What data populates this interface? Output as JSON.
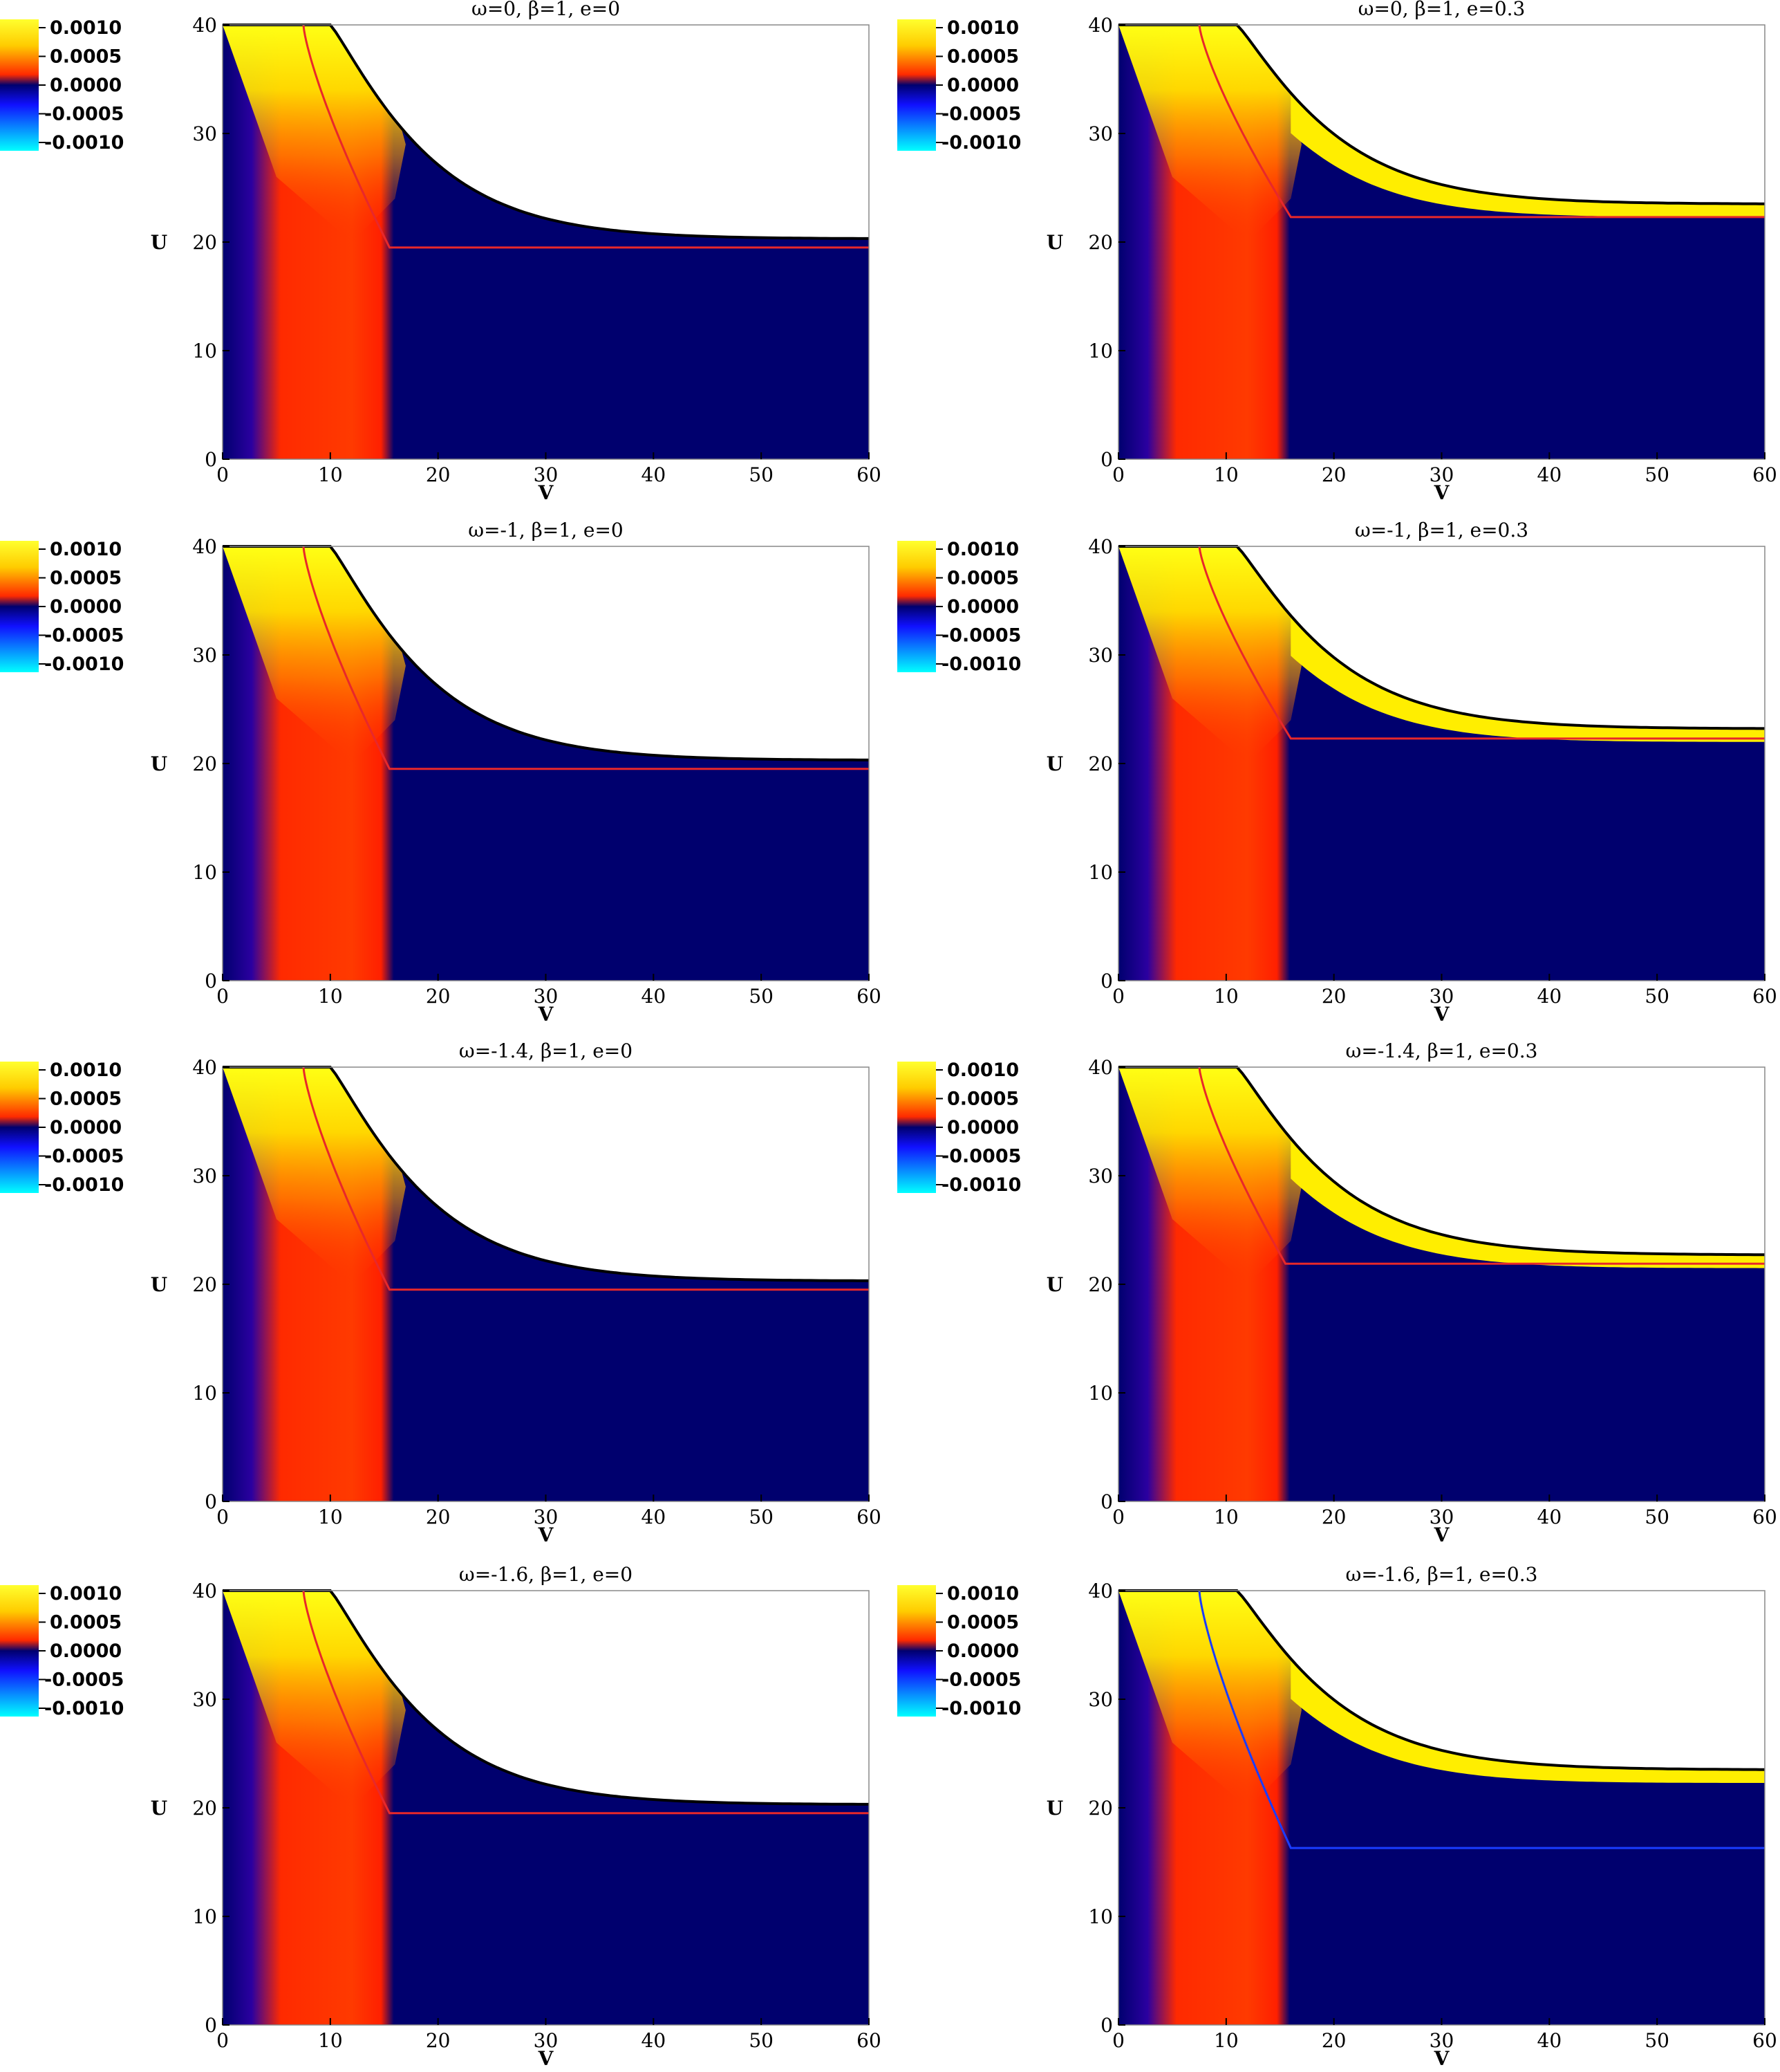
{
  "chart_data": [
    {
      "type": "heatmap",
      "title": "ω=0,   β=1,   e=0",
      "xlabel": "V",
      "ylabel": "U",
      "xlim": [
        0,
        60
      ],
      "ylim": [
        0,
        40
      ],
      "xticks": [
        "0",
        "10",
        "20",
        "30",
        "40",
        "50",
        "60"
      ],
      "yticks": [
        "0",
        "10",
        "20",
        "30",
        "40"
      ],
      "colorbar": {
        "ticks": [
          "0.0010",
          "0.0005",
          "0.0000",
          "-0.0005",
          "-0.0010"
        ],
        "range": [
          -0.001,
          0.001
        ]
      },
      "boundary": {
        "flat_until_v": 10,
        "asymptote_u": 20.3
      },
      "red_curve": {
        "start_v": 7.5,
        "turn_v": 15.5,
        "level_u": 19.5
      }
    },
    {
      "type": "heatmap",
      "title": "ω=0,   β=1,   e=0.3",
      "xlabel": "V",
      "ylabel": "U",
      "xlim": [
        0,
        60
      ],
      "ylim": [
        0,
        40
      ],
      "xticks": [
        "0",
        "10",
        "20",
        "30",
        "40",
        "50",
        "60"
      ],
      "yticks": [
        "0",
        "10",
        "20",
        "30",
        "40"
      ],
      "colorbar": {
        "ticks": [
          "0.0010",
          "0.0005",
          "0.0000",
          "-0.0005",
          "-0.0010"
        ],
        "range": [
          -0.001,
          0.001
        ]
      },
      "boundary": {
        "flat_until_v": 11,
        "asymptote_u": 23.5
      },
      "red_curve": {
        "start_v": 7.5,
        "turn_v": 16,
        "level_u": 22.3
      }
    },
    {
      "type": "heatmap",
      "title": "ω=-1,   β=1,   e=0",
      "xlabel": "V",
      "ylabel": "U",
      "xlim": [
        0,
        60
      ],
      "ylim": [
        0,
        40
      ],
      "xticks": [
        "0",
        "10",
        "20",
        "30",
        "40",
        "50",
        "60"
      ],
      "yticks": [
        "0",
        "10",
        "20",
        "30",
        "40"
      ],
      "colorbar": {
        "ticks": [
          "0.0010",
          "0.0005",
          "0.0000",
          "-0.0005",
          "-0.0010"
        ],
        "range": [
          -0.001,
          0.001
        ]
      },
      "boundary": {
        "flat_until_v": 10,
        "asymptote_u": 20.3
      },
      "red_curve": {
        "start_v": 7.5,
        "turn_v": 15.5,
        "level_u": 19.5
      }
    },
    {
      "type": "heatmap",
      "title": "ω=-1,   β=1,   e=0.3",
      "xlabel": "V",
      "ylabel": "U",
      "xlim": [
        0,
        60
      ],
      "ylim": [
        0,
        40
      ],
      "xticks": [
        "0",
        "10",
        "20",
        "30",
        "40",
        "50",
        "60"
      ],
      "yticks": [
        "0",
        "10",
        "20",
        "30",
        "40"
      ],
      "colorbar": {
        "ticks": [
          "0.0010",
          "0.0005",
          "0.0000",
          "-0.0005",
          "-0.0010"
        ],
        "range": [
          -0.001,
          0.001
        ]
      },
      "boundary": {
        "flat_until_v": 11,
        "asymptote_u": 23.2
      },
      "red_curve": {
        "start_v": 7.5,
        "turn_v": 16,
        "level_u": 22.3
      }
    },
    {
      "type": "heatmap",
      "title": "ω=-1.4,   β=1,   e=0",
      "xlabel": "V",
      "ylabel": "U",
      "xlim": [
        0,
        60
      ],
      "ylim": [
        0,
        40
      ],
      "xticks": [
        "0",
        "10",
        "20",
        "30",
        "40",
        "50",
        "60"
      ],
      "yticks": [
        "0",
        "10",
        "20",
        "30",
        "40"
      ],
      "colorbar": {
        "ticks": [
          "0.0010",
          "0.0005",
          "0.0000",
          "-0.0005",
          "-0.0010"
        ],
        "range": [
          -0.001,
          0.001
        ]
      },
      "boundary": {
        "flat_until_v": 10,
        "asymptote_u": 20.3
      },
      "red_curve": {
        "start_v": 7.5,
        "turn_v": 15.5,
        "level_u": 19.5
      }
    },
    {
      "type": "heatmap",
      "title": "ω=-1.4,   β=1,   e=0.3",
      "xlabel": "V",
      "ylabel": "U",
      "xlim": [
        0,
        60
      ],
      "ylim": [
        0,
        40
      ],
      "xticks": [
        "0",
        "10",
        "20",
        "30",
        "40",
        "50",
        "60"
      ],
      "yticks": [
        "0",
        "10",
        "20",
        "30",
        "40"
      ],
      "colorbar": {
        "ticks": [
          "0.0010",
          "0.0005",
          "0.0000",
          "-0.0005",
          "-0.0010"
        ],
        "range": [
          -0.001,
          0.001
        ]
      },
      "boundary": {
        "flat_until_v": 11,
        "asymptote_u": 22.7
      },
      "red_curve": {
        "start_v": 7.5,
        "turn_v": 15.5,
        "level_u": 21.9
      }
    },
    {
      "type": "heatmap",
      "title": "ω=-1.6,   β=1,   e=0",
      "xlabel": "V",
      "ylabel": "U",
      "xlim": [
        0,
        60
      ],
      "ylim": [
        0,
        40
      ],
      "xticks": [
        "0",
        "10",
        "20",
        "30",
        "40",
        "50",
        "60"
      ],
      "yticks": [
        "0",
        "10",
        "20",
        "30",
        "40"
      ],
      "colorbar": {
        "ticks": [
          "0.0010",
          "0.0005",
          "0.0000",
          "-0.0005",
          "-0.0010"
        ],
        "range": [
          -0.001,
          0.001
        ]
      },
      "boundary": {
        "flat_until_v": 10,
        "asymptote_u": 20.3
      },
      "red_curve": {
        "start_v": 7.5,
        "turn_v": 15.5,
        "level_u": 19.5
      }
    },
    {
      "type": "heatmap",
      "title": "ω=-1.6,   β=1,   e=0.3",
      "xlabel": "V",
      "ylabel": "U",
      "xlim": [
        0,
        60
      ],
      "ylim": [
        0,
        40
      ],
      "xticks": [
        "0",
        "10",
        "20",
        "30",
        "40",
        "50",
        "60"
      ],
      "yticks": [
        "0",
        "10",
        "20",
        "30",
        "40"
      ],
      "colorbar": {
        "ticks": [
          "0.0010",
          "0.0005",
          "0.0000",
          "-0.0005",
          "-0.0010"
        ],
        "range": [
          -0.001,
          0.001
        ]
      },
      "boundary": {
        "flat_until_v": 11,
        "asymptote_u": 23.5
      },
      "red_curve": {
        "start_v": 7.5,
        "turn_v": 16,
        "level_u": 16.3
      }
    }
  ]
}
